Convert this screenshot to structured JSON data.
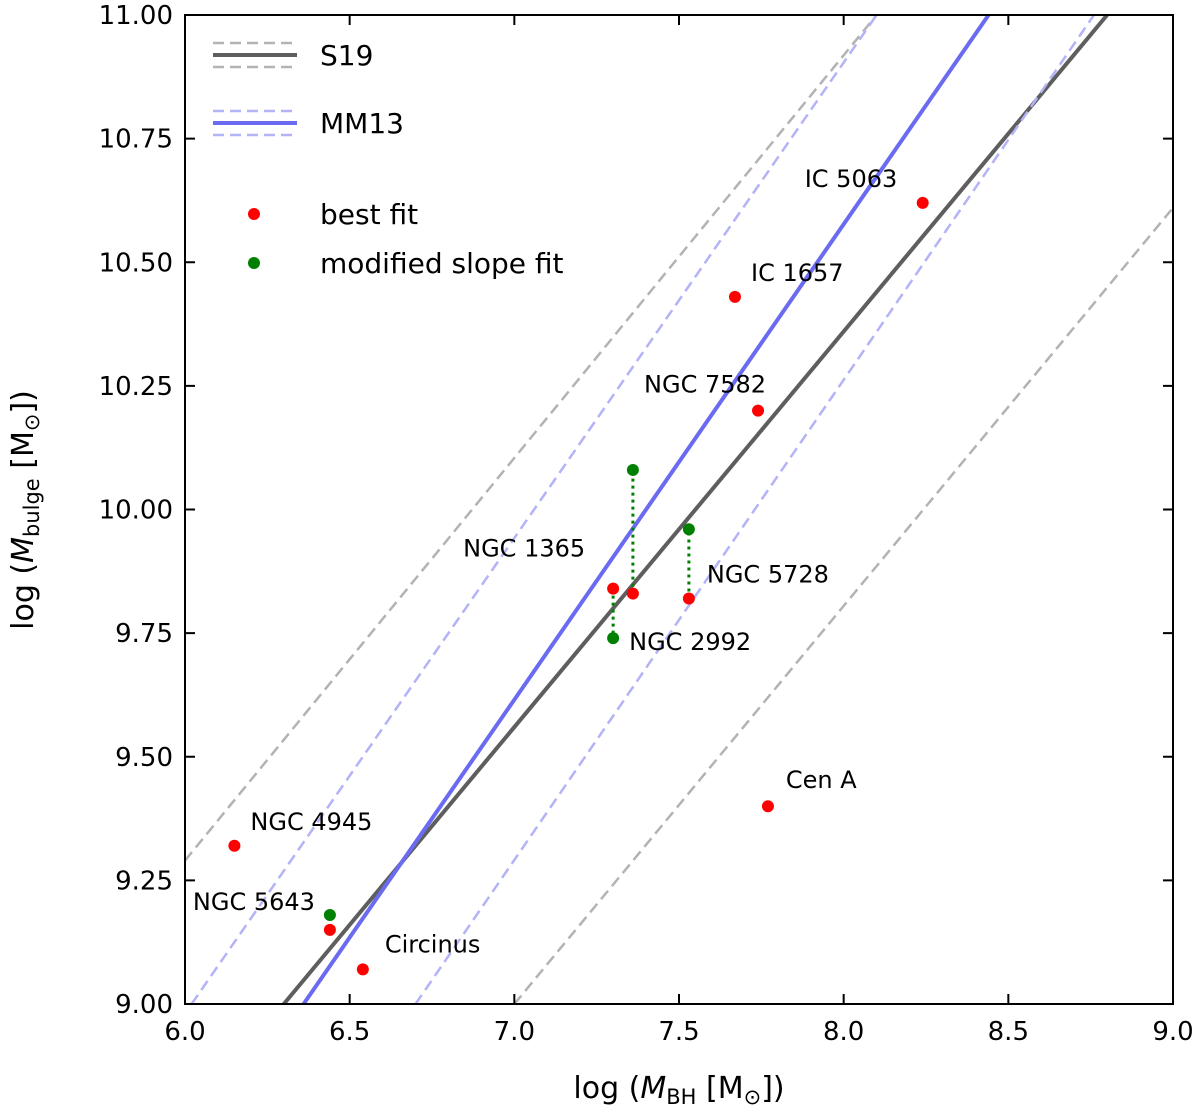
{
  "chart_data": {
    "type": "scatter",
    "title": "",
    "xlabel": {
      "prefix": "log (",
      "var": "M",
      "sub": "BH",
      "unit": " [M",
      "sun": "⊙",
      "close": "])"
    },
    "ylabel": {
      "prefix": "log (",
      "var": "M",
      "sub": "bulge",
      "unit": " [M",
      "sun": "⊙",
      "close": "])"
    },
    "xlim": [
      6.0,
      9.0
    ],
    "ylim": [
      9.0,
      11.0
    ],
    "xticks": [
      "6.0",
      "6.5",
      "7.0",
      "7.5",
      "8.0",
      "8.5",
      "9.0"
    ],
    "yticks": [
      "9.00",
      "9.25",
      "9.50",
      "9.75",
      "10.00",
      "10.25",
      "10.50",
      "10.75",
      "11.00"
    ],
    "grid": false,
    "legend_position": "top-left",
    "relations": [
      {
        "name": "S19",
        "color": "#5e5e5e",
        "band_color": "#b3b3b3",
        "line": [
          [
            6.3,
            9.0
          ],
          [
            8.8,
            11.0
          ]
        ],
        "lower": [
          [
            7.0,
            9.0
          ],
          [
            9.0,
            10.61
          ]
        ],
        "upper": [
          [
            6.0,
            9.29
          ],
          [
            8.1,
            11.0
          ]
        ]
      },
      {
        "name": "MM13",
        "color": "#6b6bf2",
        "band_color": "#b3b3f7",
        "line": [
          [
            6.36,
            9.0
          ],
          [
            8.44,
            11.0
          ]
        ],
        "lower": [
          [
            6.7,
            9.0
          ],
          [
            8.76,
            11.0
          ]
        ],
        "upper": [
          [
            6.02,
            9.0
          ],
          [
            8.1,
            11.0
          ]
        ]
      }
    ],
    "series": [
      {
        "name": "best fit",
        "color": "#ff0000",
        "points": [
          {
            "x": 8.24,
            "y": 10.62,
            "label": "IC 5063"
          },
          {
            "x": 7.67,
            "y": 10.43,
            "label": "IC 1657"
          },
          {
            "x": 7.74,
            "y": 10.2,
            "label": "NGC 7582"
          },
          {
            "x": 7.3,
            "y": 9.84,
            "label": "NGC 1365"
          },
          {
            "x": 7.36,
            "y": 9.83,
            "label": ""
          },
          {
            "x": 7.53,
            "y": 9.82,
            "label": "NGC 5728"
          },
          {
            "x": 7.77,
            "y": 9.4,
            "label": "Cen A"
          },
          {
            "x": 6.15,
            "y": 9.32,
            "label": "NGC 4945"
          },
          {
            "x": 6.44,
            "y": 9.15,
            "label": "NGC 5643"
          },
          {
            "x": 6.54,
            "y": 9.07,
            "label": "Circinus"
          }
        ]
      },
      {
        "name": "modified slope fit",
        "color": "#008000",
        "points": [
          {
            "x": 7.36,
            "y": 10.08,
            "label": ""
          },
          {
            "x": 7.53,
            "y": 9.96,
            "label": ""
          },
          {
            "x": 7.3,
            "y": 9.74,
            "label": "NGC 2992"
          },
          {
            "x": 6.44,
            "y": 9.18,
            "label": ""
          }
        ]
      }
    ],
    "connectors": [
      {
        "x": 7.36,
        "y1": 9.83,
        "y2": 10.08
      },
      {
        "x": 7.53,
        "y1": 9.82,
        "y2": 9.96
      },
      {
        "x": 7.3,
        "y1": 9.84,
        "y2": 9.74
      }
    ]
  }
}
